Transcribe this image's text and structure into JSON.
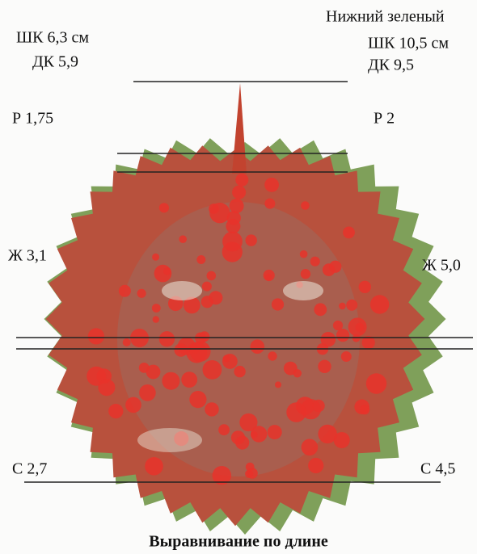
{
  "left": {
    "width": "ШК 6,3 см",
    "length": "ДК 5,9",
    "rostrum": "Р 1,75",
    "side": "Ж 3,1",
    "back": "С 2,7"
  },
  "right": {
    "title": "Нижний зеленый",
    "width": "ШК 10,5 см",
    "length": "ДК 9,5",
    "rostrum": "Р 2",
    "side": "Ж 5,0",
    "back": "С 4,5"
  },
  "caption": "Выравнивание по длине"
}
